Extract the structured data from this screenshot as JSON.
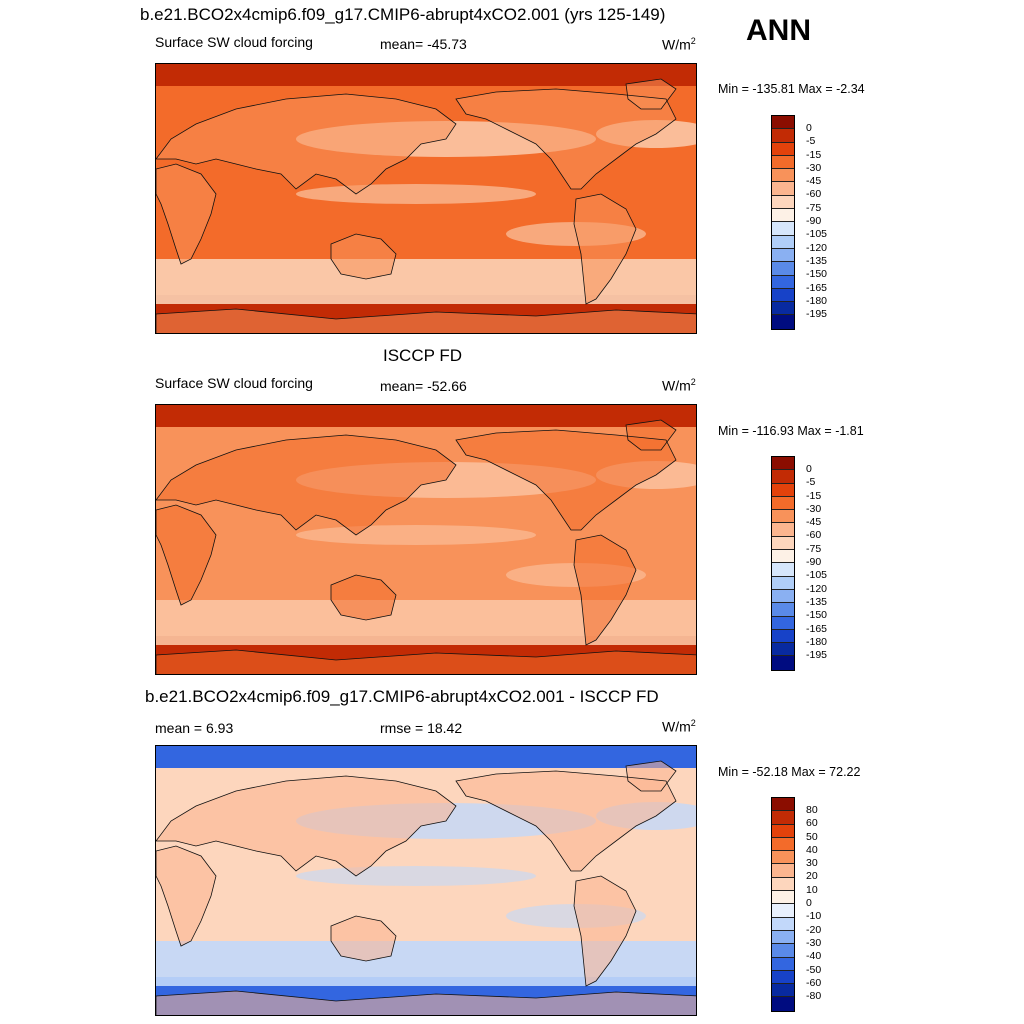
{
  "header": {
    "title": "b.e21.BCO2x4cmip6.f09_g17.CMIP6-abrupt4xCO2.001 (yrs 125-149)",
    "season": "ANN"
  },
  "panels": [
    {
      "title": "",
      "left_label": "Surface SW cloud forcing",
      "center_label": "mean= -45.73",
      "units_base": "W/m",
      "units_exp": "2",
      "minmax": "Min = -135.81 Max =  -2.34",
      "colorbar": {
        "ticks": [
          "0",
          "-5",
          "-15",
          "-30",
          "-45",
          "-60",
          "-75",
          "-90",
          "-105",
          "-120",
          "-135",
          "-150",
          "-165",
          "-180",
          "-195"
        ],
        "colors": [
          "#8b0d00",
          "#c22b05",
          "#e3420b",
          "#f36b2a",
          "#f8925a",
          "#fbb58f",
          "#fdd6bd",
          "#fdf1e6",
          "#d6e6fb",
          "#b0cef8",
          "#8ab0f2",
          "#5a8ae8",
          "#3366e0",
          "#1742c8",
          "#082aa0",
          "#000c80"
        ]
      },
      "map_palette": {
        "ocean_base": "#f36b2a",
        "storm_track": "#fbd2b5",
        "polar": "#c22b05",
        "land": "#f8925a"
      }
    },
    {
      "title": "ISCCP FD",
      "left_label": "Surface SW cloud forcing",
      "center_label": "mean= -52.66",
      "units_base": "W/m",
      "units_exp": "2",
      "minmax": "Min = -116.93 Max =  -1.81",
      "colorbar": {
        "ticks": [
          "0",
          "-5",
          "-15",
          "-30",
          "-45",
          "-60",
          "-75",
          "-90",
          "-105",
          "-120",
          "-135",
          "-150",
          "-165",
          "-180",
          "-195"
        ],
        "colors": [
          "#8b0d00",
          "#c22b05",
          "#e3420b",
          "#f36b2a",
          "#f8925a",
          "#fbb58f",
          "#fdd6bd",
          "#fdf1e6",
          "#d6e6fb",
          "#b0cef8",
          "#8ab0f2",
          "#5a8ae8",
          "#3366e0",
          "#1742c8",
          "#082aa0",
          "#000c80"
        ]
      },
      "map_palette": {
        "ocean_base": "#f8925a",
        "storm_track": "#fbc4a2",
        "polar": "#c22b05",
        "land": "#f36b2a"
      }
    },
    {
      "title": "b.e21.BCO2x4cmip6.f09_g17.CMIP6-abrupt4xCO2.001 - ISCCP FD",
      "left_label": "mean =   6.93",
      "center_label": "rmse =  18.42",
      "units_base": "W/m",
      "units_exp": "2",
      "minmax": "Min = -52.18 Max =  72.22",
      "colorbar": {
        "ticks": [
          "80",
          "60",
          "50",
          "40",
          "30",
          "20",
          "10",
          "0",
          "-10",
          "-20",
          "-30",
          "-40",
          "-50",
          "-60",
          "-80"
        ],
        "colors": [
          "#8b0d00",
          "#c22b05",
          "#e3420b",
          "#f36b2a",
          "#f8925a",
          "#fbb58f",
          "#fdd6bd",
          "#fdf1e6",
          "#e8f0fd",
          "#c2d8fa",
          "#8ab0f2",
          "#5a8ae8",
          "#3366e0",
          "#1742c8",
          "#082aa0",
          "#000c80"
        ]
      },
      "map_palette": {
        "ocean_base": "#fdd6bd",
        "storm_track": "#c2d8fa",
        "polar": "#3366e0",
        "land": "#fbb58f"
      }
    }
  ]
}
